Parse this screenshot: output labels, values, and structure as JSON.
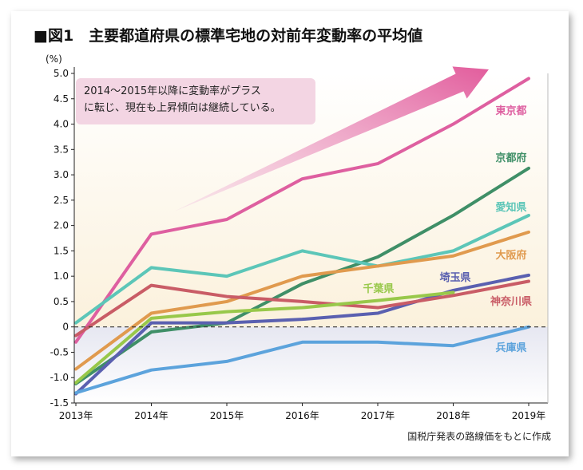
{
  "title": "■図1　主要都道府県の標準宅地の対前年変動率の平均値",
  "source": "国税庁発表の路線価をもとに作成",
  "callout": {
    "line1": "2014〜2015年以降に変動率がプラス",
    "line2": "に転じ、現在も上昇傾向は継続している。"
  },
  "chart_data": {
    "type": "line",
    "title": "主要都道府県の標準宅地の対前年変動率の平均値",
    "ylabel": "(%)",
    "ylim": [
      -1.5,
      5.0
    ],
    "yticks": [
      5.0,
      4.5,
      4.0,
      3.5,
      3.0,
      2.5,
      2.0,
      1.5,
      1.0,
      0.5,
      0,
      -0.5,
      -1.0,
      -1.5
    ],
    "ytick_labels": [
      "5.0",
      "4.5",
      "4.0",
      "3.5",
      "3.0",
      "2.5",
      "2.0",
      "1.5",
      "1.0",
      "0.5",
      "0",
      "-0.5",
      "-1.0",
      "-1.5"
    ],
    "x": [
      "2013年",
      "2014年",
      "2015年",
      "2016年",
      "2017年",
      "2018年",
      "2019年"
    ],
    "series": [
      {
        "name": "東京都",
        "color": "#de5fa0",
        "values": [
          -0.3,
          1.83,
          2.12,
          2.92,
          3.22,
          4.0,
          4.9
        ]
      },
      {
        "name": "京都府",
        "color": "#3f8f67",
        "values": [
          -1.12,
          -0.1,
          0.08,
          0.85,
          1.38,
          2.2,
          3.13
        ]
      },
      {
        "name": "愛知県",
        "color": "#5cc6b8",
        "values": [
          0.08,
          1.17,
          1.0,
          1.5,
          1.2,
          1.5,
          2.2
        ]
      },
      {
        "name": "大阪府",
        "color": "#e09a4e",
        "values": [
          -0.83,
          0.27,
          0.5,
          1.0,
          1.2,
          1.4,
          1.87
        ]
      },
      {
        "name": "埼玉県",
        "color": "#5a60b0",
        "values": [
          -1.32,
          0.08,
          0.08,
          0.15,
          0.27,
          0.72,
          1.02
        ]
      },
      {
        "name": "神奈川県",
        "color": "#c95c66",
        "values": [
          -0.17,
          0.82,
          0.6,
          0.5,
          0.38,
          0.62,
          0.9
        ]
      },
      {
        "name": "千葉県",
        "color": "#98c84a",
        "values": [
          -1.1,
          0.17,
          0.3,
          0.38,
          0.52,
          0.68,
          null
        ]
      },
      {
        "name": "兵庫県",
        "color": "#5ca3dc",
        "values": [
          -1.3,
          -0.85,
          -0.68,
          -0.3,
          -0.3,
          -0.37,
          0.0
        ]
      }
    ]
  }
}
